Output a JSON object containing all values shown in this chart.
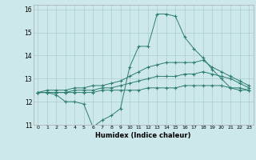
{
  "title": "",
  "xlabel": "Humidex (Indice chaleur)",
  "x": [
    0,
    1,
    2,
    3,
    4,
    5,
    6,
    7,
    8,
    9,
    10,
    11,
    12,
    13,
    14,
    15,
    16,
    17,
    18,
    19,
    20,
    21,
    22,
    23
  ],
  "line1": [
    12.4,
    12.4,
    12.3,
    12.0,
    12.0,
    11.9,
    10.9,
    11.2,
    11.4,
    11.7,
    13.5,
    14.4,
    14.4,
    15.8,
    15.8,
    15.7,
    14.8,
    14.3,
    13.9,
    13.4,
    13.0,
    12.6,
    12.5,
    12.5
  ],
  "line2": [
    12.4,
    12.5,
    12.5,
    12.5,
    12.6,
    12.6,
    12.7,
    12.7,
    12.8,
    12.9,
    13.1,
    13.3,
    13.5,
    13.6,
    13.7,
    13.7,
    13.7,
    13.7,
    13.8,
    13.5,
    13.3,
    13.1,
    12.9,
    12.7
  ],
  "line3": [
    12.4,
    12.4,
    12.4,
    12.4,
    12.5,
    12.5,
    12.5,
    12.6,
    12.6,
    12.7,
    12.8,
    12.9,
    13.0,
    13.1,
    13.1,
    13.1,
    13.2,
    13.2,
    13.3,
    13.2,
    13.1,
    13.0,
    12.8,
    12.6
  ],
  "line4": [
    12.4,
    12.4,
    12.4,
    12.4,
    12.4,
    12.4,
    12.4,
    12.5,
    12.5,
    12.5,
    12.5,
    12.5,
    12.6,
    12.6,
    12.6,
    12.6,
    12.7,
    12.7,
    12.7,
    12.7,
    12.7,
    12.6,
    12.6,
    12.5
  ],
  "line_color": "#2e7d6e",
  "bg_color": "#cce8ea",
  "grid_color": "#aacccc",
  "ylim": [
    11.0,
    16.2
  ],
  "yticks": [
    11,
    12,
    13,
    14,
    15,
    16
  ],
  "xticks": [
    0,
    1,
    2,
    3,
    4,
    5,
    6,
    7,
    8,
    9,
    10,
    11,
    12,
    13,
    14,
    15,
    16,
    17,
    18,
    19,
    20,
    21,
    22,
    23
  ]
}
